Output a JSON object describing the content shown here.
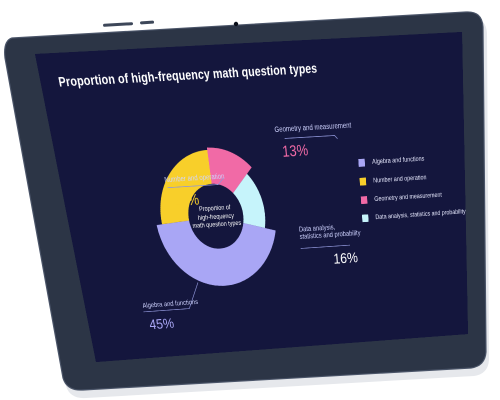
{
  "chart_data": {
    "type": "pie",
    "variant": "donut",
    "title": "Proportion of high-frequency math question types",
    "center_label_lines": [
      "Proportion of",
      "high-frequency",
      "math question types"
    ],
    "slices": [
      {
        "label": "Geometry and measurement",
        "value": 13,
        "value_label": "13%",
        "color": "#f16aa6"
      },
      {
        "label_lines": [
          "Data analysis,",
          "statistics and probability"
        ],
        "label": "Data analysis, statistics and probability",
        "value": 16,
        "value_label": "16%",
        "color": "#c6f4fb"
      },
      {
        "label": "Algebra and functions",
        "value": 45,
        "value_label": "45%",
        "color": "#a9a6f5"
      },
      {
        "label": "Number and operation",
        "value": 26,
        "value_label": "26%",
        "color": "#f8cf2a"
      }
    ],
    "legend": {
      "placement": "right",
      "items": [
        {
          "label": "Algebra and functions",
          "color": "#a9a6f5"
        },
        {
          "label": "Number and operation",
          "color": "#f8cf2a"
        },
        {
          "label": "Geometry and measurement",
          "color": "#f16aa6"
        },
        {
          "label": "Data analysis, statistics and probability",
          "color": "#c6f4fb"
        }
      ]
    },
    "value_colors": {
      "Number and operation": "#f8cf2a",
      "Geometry and measurement": "#f16aa6",
      "Data analysis, statistics and probability": "#ffffff",
      "Algebra and functions": "#a9a6f5"
    }
  },
  "device": {
    "frame_color": "#2c3546",
    "screen_background": "#14163d"
  }
}
